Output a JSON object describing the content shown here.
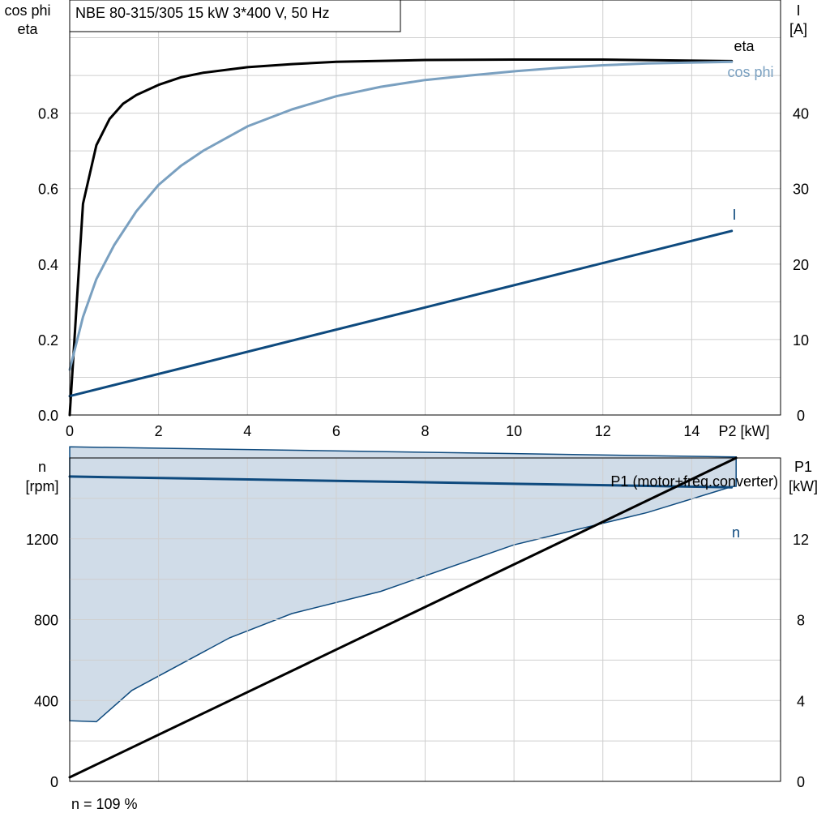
{
  "colors": {
    "black": "#000000",
    "light_blue": "#7aa0c0",
    "dark_blue": "#0e4a7e",
    "grid": "#cfcfcf",
    "fill": "#d0dce8"
  },
  "chart_data": [
    {
      "type": "line",
      "title": "NBE 80-315/305   15 kW   3*400 V, 50 Hz",
      "xlabel": "P2 [kW]",
      "ylabel_left": [
        "cos phi",
        "eta"
      ],
      "ylabel_right": [
        "I",
        "[A]"
      ],
      "xlim": [
        0,
        16
      ],
      "ylim_left": [
        0,
        1.1
      ],
      "ylim_right": [
        0,
        55
      ],
      "x_ticks": [
        "0",
        "2",
        "4",
        "6",
        "8",
        "10",
        "12",
        "14"
      ],
      "y_ticks_left": [
        "0.0",
        "0.2",
        "0.4",
        "0.6",
        "0.8"
      ],
      "y_ticks_right": [
        "0",
        "10",
        "20",
        "30",
        "40"
      ],
      "grid": true,
      "series": [
        {
          "name": "eta",
          "axis": "left",
          "color": "#000000",
          "x": [
            0,
            0.3,
            0.6,
            0.9,
            1.2,
            1.5,
            2.0,
            2.5,
            3.0,
            4.0,
            5.0,
            6.0,
            8.0,
            10.0,
            12.0,
            14.9
          ],
          "y": [
            0.0,
            0.56,
            0.715,
            0.785,
            0.825,
            0.848,
            0.875,
            0.895,
            0.907,
            0.922,
            0.93,
            0.936,
            0.941,
            0.942,
            0.942,
            0.938
          ]
        },
        {
          "name": "cos phi",
          "axis": "left",
          "color": "#7aa0c0",
          "x": [
            0,
            0.3,
            0.6,
            1.0,
            1.5,
            2.0,
            2.5,
            3.0,
            4.0,
            5.0,
            6.0,
            7.0,
            8.0,
            9.0,
            10.0,
            11.0,
            12.0,
            13.0,
            14.9
          ],
          "y": [
            0.12,
            0.26,
            0.36,
            0.45,
            0.54,
            0.61,
            0.66,
            0.7,
            0.765,
            0.81,
            0.845,
            0.87,
            0.888,
            0.9,
            0.911,
            0.92,
            0.927,
            0.932,
            0.936
          ]
        },
        {
          "name": "I",
          "axis": "right",
          "color": "#0e4a7e",
          "x": [
            0,
            14.9
          ],
          "y": [
            2.5,
            24.4
          ]
        }
      ]
    },
    {
      "type": "line",
      "ylabel_left": [
        "n",
        "[rpm]"
      ],
      "ylabel_right": [
        "P1",
        "[kW]"
      ],
      "xlim": [
        0,
        16
      ],
      "ylim_left": [
        0,
        1600
      ],
      "ylim_right": [
        0,
        16
      ],
      "y_ticks_left": [
        "0",
        "400",
        "800",
        "1200"
      ],
      "y_ticks_right": [
        "0",
        "4",
        "8",
        "12"
      ],
      "grid": true,
      "note": "n = 109 %",
      "area": {
        "x": [
          0,
          15.0,
          15.0,
          14.9,
          13.0,
          10.0,
          7.0,
          5.0,
          3.6,
          1.4,
          0.6,
          0
        ],
        "y": [
          1655,
          1605,
          1460,
          1458,
          1330,
          1170,
          940,
          830,
          710,
          450,
          295,
          300
        ]
      },
      "series": [
        {
          "name": "n",
          "axis": "left",
          "color": "#0e4a7e",
          "x": [
            0,
            14.9
          ],
          "y": [
            1508,
            1455
          ]
        },
        {
          "name": "P1 (motor+freq.converter)",
          "axis": "right",
          "color": "#000000",
          "x": [
            0,
            15.0
          ],
          "y": [
            0.2,
            16.0
          ]
        }
      ]
    }
  ]
}
